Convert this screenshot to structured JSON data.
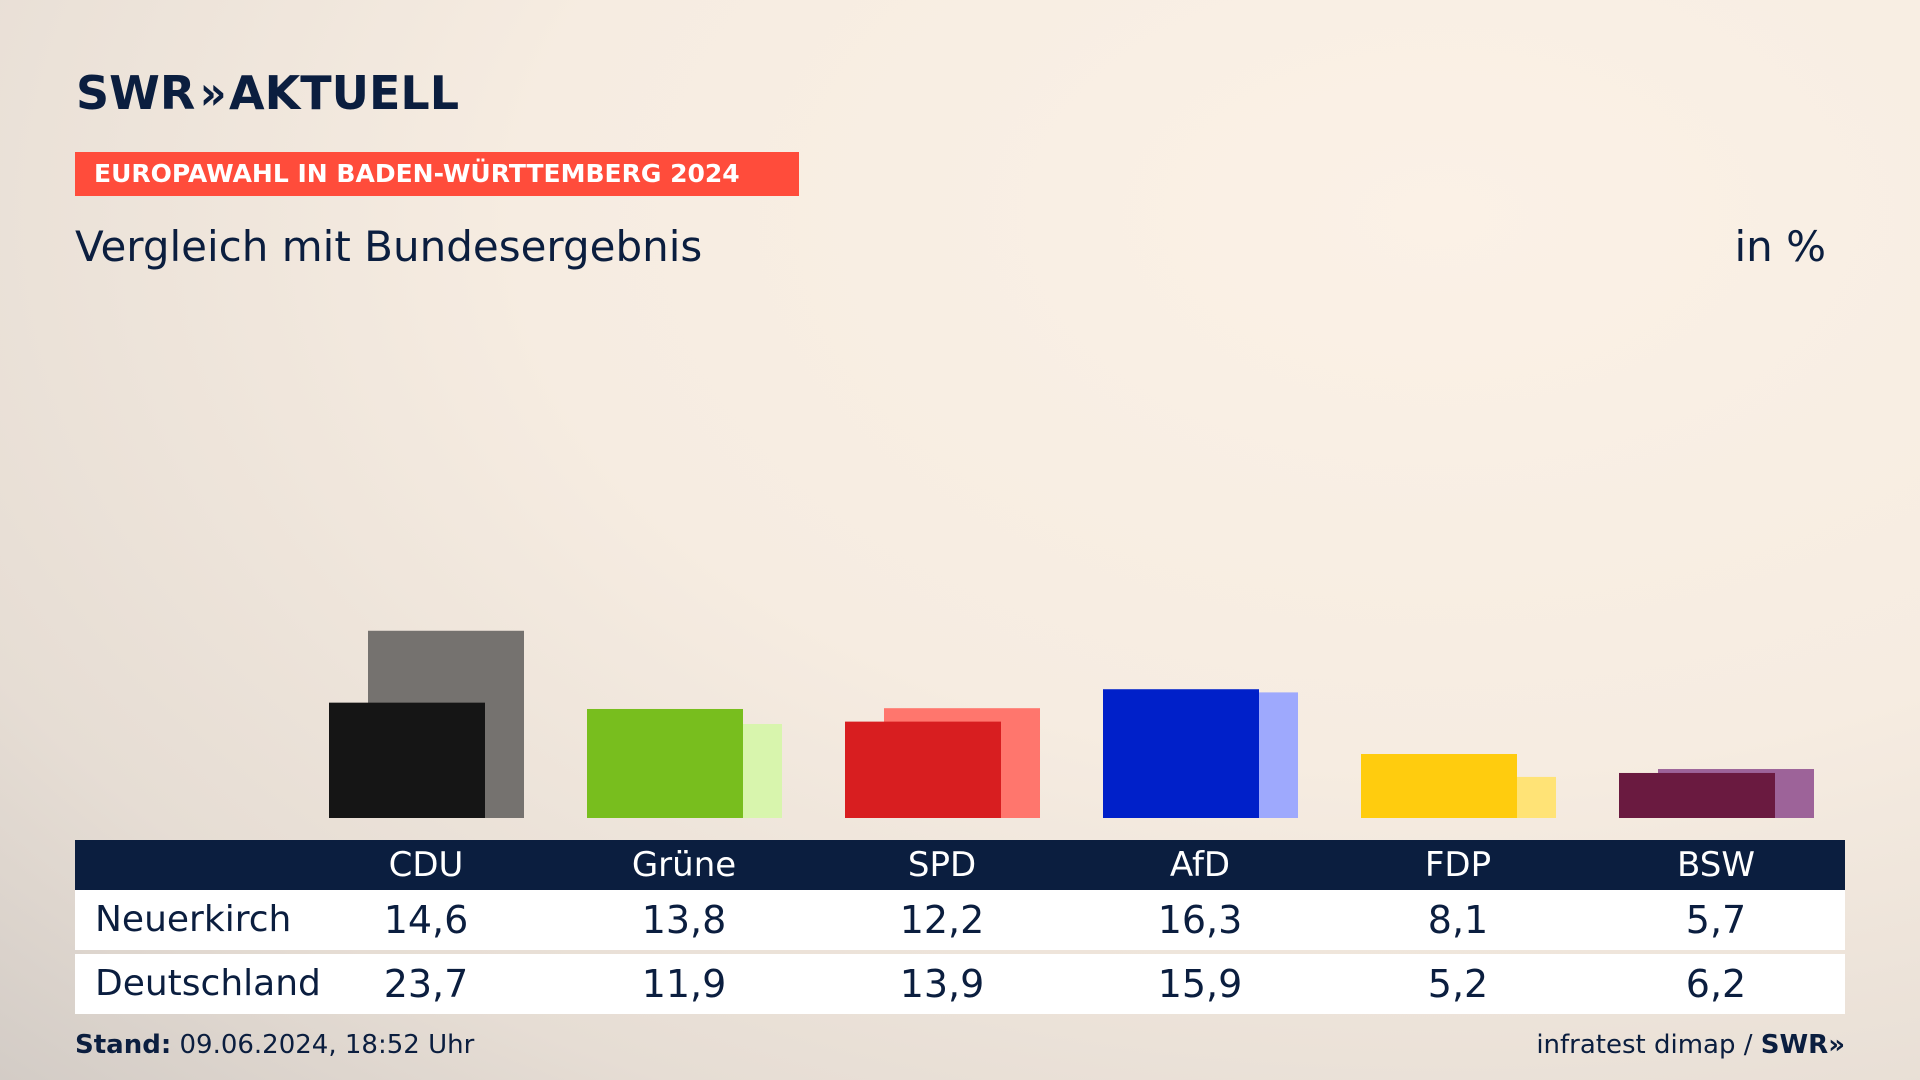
{
  "header": {
    "logo_text": "SWR",
    "logo_arrows": "»",
    "logo_suffix": "AKTUELL",
    "banner": "EUROPAWAHL IN BADEN-WÜRTTEMBERG 2024",
    "title": "Vergleich mit Bundesergebnis",
    "unit": "in %"
  },
  "chart_data": {
    "type": "bar",
    "title": "Vergleich mit Bundesergebnis",
    "unit": "in %",
    "categories": [
      "CDU",
      "Grüne",
      "SPD",
      "AfD",
      "FDP",
      "BSW"
    ],
    "series": [
      {
        "name": "Neuerkirch",
        "values": [
          14.6,
          13.8,
          12.2,
          16.3,
          8.1,
          5.7
        ]
      },
      {
        "name": "Deutschland",
        "values": [
          23.7,
          11.9,
          13.9,
          15.9,
          5.2,
          6.2
        ]
      }
    ],
    "colors_local": [
      "#151515",
      "#78be1e",
      "#d81e20",
      "#0020c9",
      "#ffcc0e",
      "#6a1a40"
    ],
    "colors_national": [
      "#75726f",
      "#d8f5ad",
      "#ff766d",
      "#9ea9fd",
      "#ffe376",
      "#9d6399"
    ],
    "ylim": [
      0,
      24
    ]
  },
  "table": {
    "headers": [
      "CDU",
      "Grüne",
      "SPD",
      "AfD",
      "FDP",
      "BSW"
    ],
    "rows": [
      {
        "label": "Neuerkirch",
        "values": [
          "14,6",
          "13,8",
          "12,2",
          "16,3",
          "8,1",
          "5,7"
        ]
      },
      {
        "label": "Deutschland",
        "values": [
          "23,7",
          "11,9",
          "13,9",
          "15,9",
          "5,2",
          "6,2"
        ]
      }
    ]
  },
  "footer": {
    "stand_label": "Stand:",
    "stand_value": " 09.06.2024, 18:52 Uhr",
    "source": "infratest dimap / ",
    "source_brand": "SWR»"
  }
}
